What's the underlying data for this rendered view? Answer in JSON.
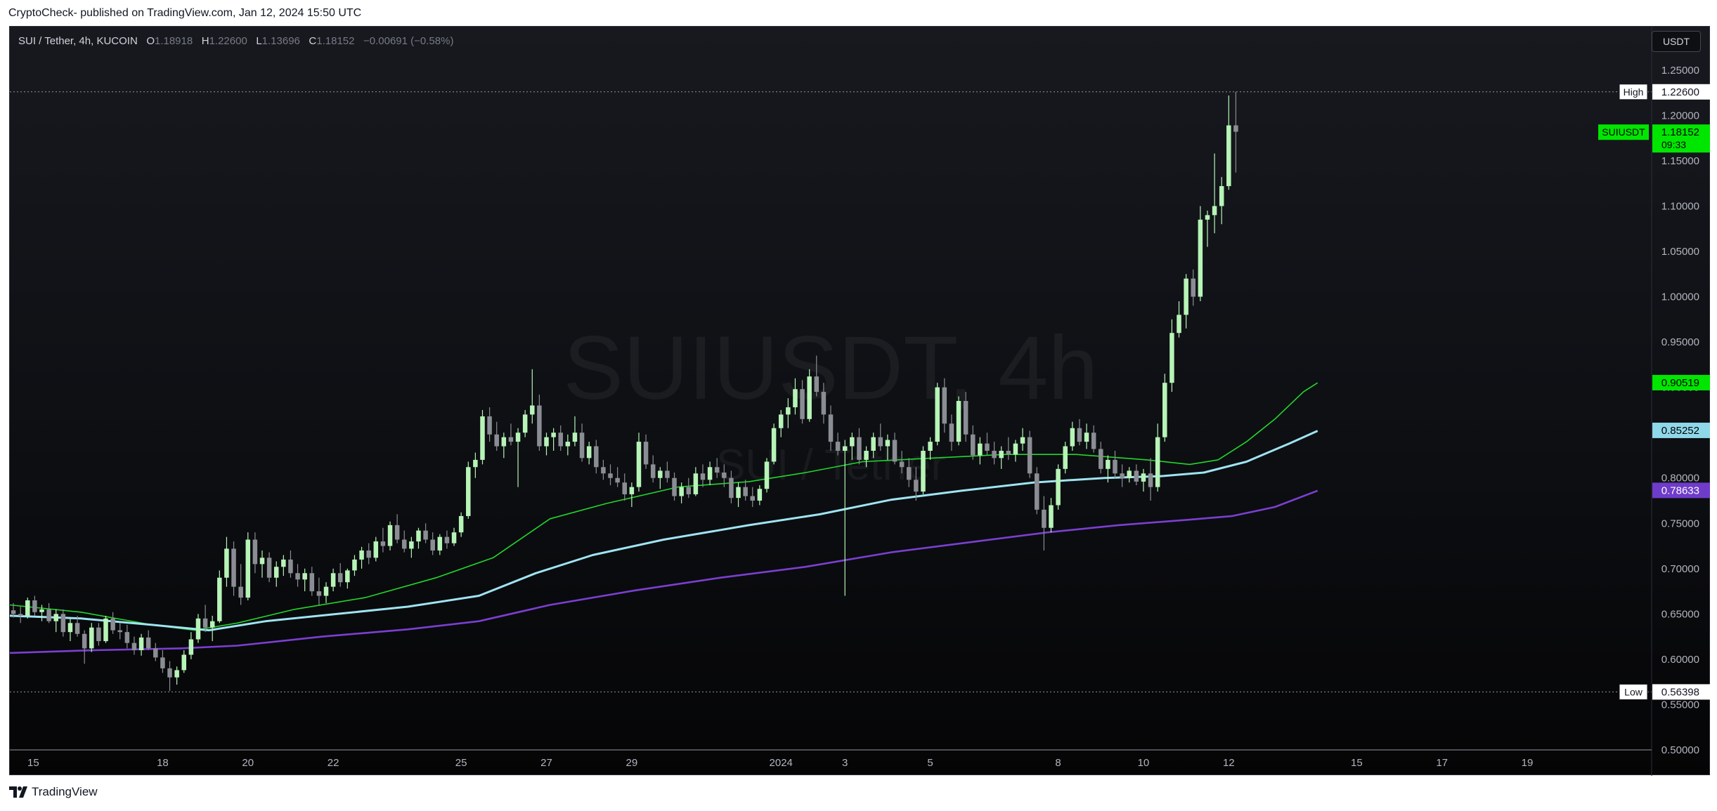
{
  "caption": "CryptoCheck- published on TradingView.com, Jan 12, 2024 15:50 UTC",
  "symbol": {
    "title": "SUI / Tether, 4h, KUCOIN",
    "o_label": "O",
    "o": "1.18918",
    "h_label": "H",
    "h": "1.22600",
    "l_label": "L",
    "l": "1.13696",
    "c_label": "C",
    "c": "1.18152",
    "change": "−0.00691 (−0.58%)"
  },
  "currency_button": "USDT",
  "watermark": {
    "main": "SUIUSDT, 4h",
    "sub": "SUI / Tether"
  },
  "footer_brand": "TradingView",
  "colors": {
    "up": "#b7f4b7",
    "down": "#8a8d93",
    "ema_short": "#22d62b",
    "ema_mid": "#9fe4f2",
    "ema_long": "#7b3fd1",
    "price_label_bg": "#00e600",
    "ema_mid_label_bg": "#8fd8ea",
    "ema_long_label_bg": "#6f3cc9"
  },
  "chart_data": {
    "type": "candlestick",
    "ylim": [
      0.5,
      1.27
    ],
    "y_ticks": [
      "1.25000",
      "1.20000",
      "1.15000",
      "1.10000",
      "1.05000",
      "1.00000",
      "0.95000",
      "0.90000",
      "0.85000",
      "0.80000",
      "0.75000",
      "0.70000",
      "0.65000",
      "0.60000",
      "0.55000",
      "0.50000"
    ],
    "x_ticks": [
      {
        "t": 3.3,
        "label": "15"
      },
      {
        "t": 21.5,
        "label": "18"
      },
      {
        "t": 33.5,
        "label": "20"
      },
      {
        "t": 45.5,
        "label": "22"
      },
      {
        "t": 63.5,
        "label": "25"
      },
      {
        "t": 75.5,
        "label": "27"
      },
      {
        "t": 87.5,
        "label": "29"
      },
      {
        "t": 108.5,
        "label": "2024"
      },
      {
        "t": 117.5,
        "label": "3"
      },
      {
        "t": 129.5,
        "label": "5"
      },
      {
        "t": 147.5,
        "label": "8"
      },
      {
        "t": 159.5,
        "label": "10"
      },
      {
        "t": 171.5,
        "label": "12"
      },
      {
        "t": 189.5,
        "label": "15"
      },
      {
        "t": 201.5,
        "label": "17"
      },
      {
        "t": 213.5,
        "label": "19"
      }
    ],
    "x_range": [
      0,
      231
    ],
    "candles": [
      [
        0.654,
        0.662,
        0.646,
        0.65
      ],
      [
        0.65,
        0.658,
        0.64,
        0.648
      ],
      [
        0.648,
        0.668,
        0.645,
        0.665
      ],
      [
        0.665,
        0.67,
        0.648,
        0.652
      ],
      [
        0.652,
        0.66,
        0.642,
        0.655
      ],
      [
        0.655,
        0.662,
        0.64,
        0.642
      ],
      [
        0.642,
        0.655,
        0.63,
        0.65
      ],
      [
        0.65,
        0.655,
        0.625,
        0.63
      ],
      [
        0.63,
        0.645,
        0.62,
        0.64
      ],
      [
        0.64,
        0.648,
        0.625,
        0.628
      ],
      [
        0.628,
        0.632,
        0.595,
        0.612
      ],
      [
        0.612,
        0.64,
        0.608,
        0.635
      ],
      [
        0.635,
        0.64,
        0.615,
        0.62
      ],
      [
        0.62,
        0.648,
        0.618,
        0.645
      ],
      [
        0.645,
        0.652,
        0.628,
        0.632
      ],
      [
        0.632,
        0.64,
        0.622,
        0.63
      ],
      [
        0.63,
        0.638,
        0.612,
        0.618
      ],
      [
        0.618,
        0.625,
        0.605,
        0.61
      ],
      [
        0.61,
        0.628,
        0.604,
        0.624
      ],
      [
        0.624,
        0.632,
        0.61,
        0.612
      ],
      [
        0.612,
        0.618,
        0.598,
        0.602
      ],
      [
        0.602,
        0.61,
        0.585,
        0.59
      ],
      [
        0.59,
        0.598,
        0.565,
        0.58
      ],
      [
        0.58,
        0.592,
        0.572,
        0.588
      ],
      [
        0.588,
        0.61,
        0.585,
        0.605
      ],
      [
        0.605,
        0.63,
        0.6,
        0.622
      ],
      [
        0.622,
        0.65,
        0.618,
        0.645
      ],
      [
        0.645,
        0.66,
        0.63,
        0.635
      ],
      [
        0.635,
        0.648,
        0.62,
        0.642
      ],
      [
        0.642,
        0.698,
        0.64,
        0.69
      ],
      [
        0.69,
        0.735,
        0.68,
        0.722
      ],
      [
        0.722,
        0.73,
        0.67,
        0.68
      ],
      [
        0.68,
        0.705,
        0.66,
        0.668
      ],
      [
        0.668,
        0.74,
        0.665,
        0.732
      ],
      [
        0.732,
        0.74,
        0.695,
        0.705
      ],
      [
        0.705,
        0.72,
        0.69,
        0.712
      ],
      [
        0.712,
        0.718,
        0.685,
        0.69
      ],
      [
        0.69,
        0.708,
        0.68,
        0.702
      ],
      [
        0.702,
        0.715,
        0.692,
        0.71
      ],
      [
        0.71,
        0.72,
        0.69,
        0.695
      ],
      [
        0.695,
        0.705,
        0.68,
        0.688
      ],
      [
        0.688,
        0.7,
        0.675,
        0.695
      ],
      [
        0.695,
        0.702,
        0.67,
        0.675
      ],
      [
        0.675,
        0.69,
        0.66,
        0.67
      ],
      [
        0.67,
        0.685,
        0.662,
        0.68
      ],
      [
        0.68,
        0.7,
        0.675,
        0.695
      ],
      [
        0.695,
        0.706,
        0.68,
        0.685
      ],
      [
        0.685,
        0.7,
        0.678,
        0.698
      ],
      [
        0.698,
        0.715,
        0.692,
        0.71
      ],
      [
        0.71,
        0.724,
        0.7,
        0.72
      ],
      [
        0.72,
        0.728,
        0.705,
        0.712
      ],
      [
        0.712,
        0.735,
        0.708,
        0.73
      ],
      [
        0.73,
        0.745,
        0.718,
        0.725
      ],
      [
        0.725,
        0.752,
        0.72,
        0.748
      ],
      [
        0.748,
        0.76,
        0.728,
        0.732
      ],
      [
        0.732,
        0.742,
        0.718,
        0.722
      ],
      [
        0.722,
        0.735,
        0.712,
        0.73
      ],
      [
        0.73,
        0.745,
        0.722,
        0.742
      ],
      [
        0.742,
        0.75,
        0.728,
        0.732
      ],
      [
        0.732,
        0.74,
        0.715,
        0.72
      ],
      [
        0.72,
        0.738,
        0.715,
        0.735
      ],
      [
        0.735,
        0.742,
        0.722,
        0.728
      ],
      [
        0.728,
        0.745,
        0.725,
        0.74
      ],
      [
        0.74,
        0.762,
        0.735,
        0.758
      ],
      [
        0.758,
        0.818,
        0.755,
        0.812
      ],
      [
        0.812,
        0.828,
        0.8,
        0.82
      ],
      [
        0.82,
        0.875,
        0.815,
        0.868
      ],
      [
        0.868,
        0.878,
        0.84,
        0.848
      ],
      [
        0.848,
        0.862,
        0.83,
        0.835
      ],
      [
        0.835,
        0.85,
        0.822,
        0.845
      ],
      [
        0.845,
        0.86,
        0.836,
        0.84
      ],
      [
        0.84,
        0.855,
        0.79,
        0.85
      ],
      [
        0.85,
        0.875,
        0.845,
        0.87
      ],
      [
        0.87,
        0.92,
        0.86,
        0.88
      ],
      [
        0.88,
        0.892,
        0.83,
        0.835
      ],
      [
        0.835,
        0.85,
        0.825,
        0.845
      ],
      [
        0.845,
        0.855,
        0.83,
        0.85
      ],
      [
        0.85,
        0.858,
        0.83,
        0.835
      ],
      [
        0.835,
        0.848,
        0.825,
        0.84
      ],
      [
        0.84,
        0.868,
        0.835,
        0.85
      ],
      [
        0.85,
        0.86,
        0.818,
        0.822
      ],
      [
        0.822,
        0.84,
        0.815,
        0.835
      ],
      [
        0.835,
        0.842,
        0.805,
        0.812
      ],
      [
        0.812,
        0.82,
        0.798,
        0.805
      ],
      [
        0.805,
        0.815,
        0.792,
        0.8
      ],
      [
        0.8,
        0.812,
        0.79,
        0.795
      ],
      [
        0.795,
        0.805,
        0.775,
        0.782
      ],
      [
        0.782,
        0.795,
        0.768,
        0.79
      ],
      [
        0.79,
        0.85,
        0.785,
        0.84
      ],
      [
        0.84,
        0.848,
        0.81,
        0.815
      ],
      [
        0.815,
        0.825,
        0.795,
        0.8
      ],
      [
        0.8,
        0.812,
        0.788,
        0.808
      ],
      [
        0.808,
        0.818,
        0.795,
        0.8
      ],
      [
        0.8,
        0.806,
        0.775,
        0.78
      ],
      [
        0.78,
        0.795,
        0.772,
        0.79
      ],
      [
        0.79,
        0.8,
        0.778,
        0.782
      ],
      [
        0.782,
        0.812,
        0.78,
        0.805
      ],
      [
        0.805,
        0.815,
        0.79,
        0.798
      ],
      [
        0.798,
        0.818,
        0.792,
        0.812
      ],
      [
        0.812,
        0.822,
        0.8,
        0.806
      ],
      [
        0.806,
        0.815,
        0.79,
        0.8
      ],
      [
        0.8,
        0.808,
        0.772,
        0.778
      ],
      [
        0.778,
        0.795,
        0.768,
        0.79
      ],
      [
        0.79,
        0.798,
        0.775,
        0.78
      ],
      [
        0.78,
        0.79,
        0.768,
        0.775
      ],
      [
        0.775,
        0.792,
        0.77,
        0.788
      ],
      [
        0.788,
        0.822,
        0.784,
        0.818
      ],
      [
        0.818,
        0.86,
        0.815,
        0.855
      ],
      [
        0.855,
        0.875,
        0.845,
        0.87
      ],
      [
        0.87,
        0.888,
        0.855,
        0.878
      ],
      [
        0.878,
        0.91,
        0.87,
        0.898
      ],
      [
        0.898,
        0.908,
        0.86,
        0.865
      ],
      [
        0.865,
        0.92,
        0.862,
        0.912
      ],
      [
        0.912,
        0.935,
        0.89,
        0.895
      ],
      [
        0.895,
        0.905,
        0.86,
        0.87
      ],
      [
        0.87,
        0.88,
        0.83,
        0.84
      ],
      [
        0.84,
        0.85,
        0.825,
        0.83
      ],
      [
        0.83,
        0.842,
        0.67,
        0.835
      ],
      [
        0.835,
        0.85,
        0.82,
        0.845
      ],
      [
        0.845,
        0.855,
        0.815,
        0.82
      ],
      [
        0.82,
        0.835,
        0.812,
        0.83
      ],
      [
        0.83,
        0.85,
        0.822,
        0.845
      ],
      [
        0.845,
        0.86,
        0.83,
        0.835
      ],
      [
        0.835,
        0.848,
        0.82,
        0.842
      ],
      [
        0.842,
        0.85,
        0.815,
        0.818
      ],
      [
        0.818,
        0.83,
        0.805,
        0.812
      ],
      [
        0.812,
        0.822,
        0.79,
        0.798
      ],
      [
        0.798,
        0.812,
        0.775,
        0.785
      ],
      [
        0.785,
        0.835,
        0.782,
        0.83
      ],
      [
        0.83,
        0.845,
        0.82,
        0.84
      ],
      [
        0.84,
        0.905,
        0.836,
        0.9
      ],
      [
        0.9,
        0.91,
        0.85,
        0.86
      ],
      [
        0.86,
        0.87,
        0.83,
        0.84
      ],
      [
        0.84,
        0.89,
        0.836,
        0.885
      ],
      [
        0.885,
        0.895,
        0.84,
        0.848
      ],
      [
        0.848,
        0.858,
        0.82,
        0.825
      ],
      [
        0.825,
        0.845,
        0.815,
        0.838
      ],
      [
        0.838,
        0.85,
        0.825,
        0.83
      ],
      [
        0.83,
        0.84,
        0.815,
        0.822
      ],
      [
        0.822,
        0.835,
        0.81,
        0.83
      ],
      [
        0.83,
        0.845,
        0.82,
        0.826
      ],
      [
        0.826,
        0.842,
        0.818,
        0.838
      ],
      [
        0.838,
        0.855,
        0.83,
        0.845
      ],
      [
        0.845,
        0.852,
        0.8,
        0.805
      ],
      [
        0.805,
        0.812,
        0.76,
        0.765
      ],
      [
        0.765,
        0.78,
        0.72,
        0.745
      ],
      [
        0.745,
        0.778,
        0.74,
        0.77
      ],
      [
        0.77,
        0.815,
        0.765,
        0.81
      ],
      [
        0.81,
        0.84,
        0.805,
        0.835
      ],
      [
        0.835,
        0.862,
        0.83,
        0.855
      ],
      [
        0.855,
        0.865,
        0.836,
        0.84
      ],
      [
        0.84,
        0.86,
        0.832,
        0.85
      ],
      [
        0.85,
        0.858,
        0.828,
        0.832
      ],
      [
        0.832,
        0.84,
        0.805,
        0.81
      ],
      [
        0.81,
        0.825,
        0.795,
        0.82
      ],
      [
        0.82,
        0.83,
        0.8,
        0.805
      ],
      [
        0.805,
        0.815,
        0.79,
        0.8
      ],
      [
        0.8,
        0.812,
        0.795,
        0.808
      ],
      [
        0.808,
        0.815,
        0.792,
        0.796
      ],
      [
        0.796,
        0.81,
        0.785,
        0.805
      ],
      [
        0.805,
        0.822,
        0.775,
        0.79
      ],
      [
        0.79,
        0.86,
        0.785,
        0.845
      ],
      [
        0.845,
        0.915,
        0.84,
        0.905
      ],
      [
        0.905,
        0.975,
        0.895,
        0.96
      ],
      [
        0.96,
        0.995,
        0.955,
        0.98
      ],
      [
        0.98,
        1.025,
        0.965,
        1.02
      ],
      [
        1.02,
        1.03,
        0.99,
        1.0
      ],
      [
        1.0,
        1.1,
        0.995,
        1.085
      ],
      [
        1.085,
        1.095,
        1.055,
        1.09
      ],
      [
        1.09,
        1.158,
        1.07,
        1.1
      ],
      [
        1.1,
        1.132,
        1.08,
        1.122
      ],
      [
        1.122,
        1.222,
        1.118,
        1.189
      ],
      [
        1.189,
        1.226,
        1.137,
        1.182
      ]
    ],
    "series": [
      {
        "name_label": "0.90519",
        "values": [
          [
            0,
            0.66
          ],
          [
            10,
            0.652
          ],
          [
            20,
            0.638
          ],
          [
            26,
            0.632
          ],
          [
            32,
            0.64
          ],
          [
            40,
            0.655
          ],
          [
            50,
            0.668
          ],
          [
            60,
            0.69
          ],
          [
            68,
            0.712
          ],
          [
            76,
            0.755
          ],
          [
            84,
            0.772
          ],
          [
            94,
            0.79
          ],
          [
            104,
            0.796
          ],
          [
            112,
            0.806
          ],
          [
            120,
            0.818
          ],
          [
            130,
            0.822
          ],
          [
            140,
            0.826
          ],
          [
            150,
            0.826
          ],
          [
            160,
            0.82
          ],
          [
            166,
            0.815
          ],
          [
            170,
            0.82
          ],
          [
            174,
            0.84
          ],
          [
            178,
            0.865
          ],
          [
            182,
            0.895
          ],
          [
            184,
            0.905
          ]
        ]
      },
      {
        "name_label": "0.85252",
        "values": [
          [
            0,
            0.648
          ],
          [
            10,
            0.645
          ],
          [
            20,
            0.638
          ],
          [
            28,
            0.632
          ],
          [
            36,
            0.642
          ],
          [
            46,
            0.65
          ],
          [
            56,
            0.658
          ],
          [
            66,
            0.67
          ],
          [
            74,
            0.695
          ],
          [
            82,
            0.715
          ],
          [
            92,
            0.732
          ],
          [
            104,
            0.748
          ],
          [
            114,
            0.76
          ],
          [
            124,
            0.776
          ],
          [
            134,
            0.786
          ],
          [
            144,
            0.795
          ],
          [
            154,
            0.8
          ],
          [
            162,
            0.802
          ],
          [
            168,
            0.806
          ],
          [
            174,
            0.818
          ],
          [
            180,
            0.838
          ],
          [
            184,
            0.852
          ]
        ]
      },
      {
        "name_label": "0.78633",
        "values": [
          [
            0,
            0.607
          ],
          [
            12,
            0.61
          ],
          [
            24,
            0.612
          ],
          [
            32,
            0.615
          ],
          [
            44,
            0.625
          ],
          [
            56,
            0.633
          ],
          [
            66,
            0.642
          ],
          [
            76,
            0.66
          ],
          [
            88,
            0.676
          ],
          [
            100,
            0.69
          ],
          [
            112,
            0.702
          ],
          [
            124,
            0.718
          ],
          [
            136,
            0.73
          ],
          [
            146,
            0.74
          ],
          [
            156,
            0.748
          ],
          [
            166,
            0.754
          ],
          [
            172,
            0.758
          ],
          [
            178,
            0.768
          ],
          [
            184,
            0.786
          ]
        ]
      }
    ],
    "high": {
      "label": "High",
      "value": "1.22600",
      "y": 1.226
    },
    "low": {
      "label": "Low",
      "value": "0.56398",
      "y": 0.56398
    },
    "price_label": {
      "name": "SUIUSDT",
      "value": "1.18152",
      "countdown": "09:33",
      "y": 1.18152
    },
    "ema_labels": [
      {
        "value": "0.90519",
        "y": 0.90519,
        "color_key": "price_label_bg",
        "text_color": "#000000"
      },
      {
        "value": "0.85252",
        "y": 0.85252,
        "color_key": "ema_mid_label_bg",
        "text_color": "#000000"
      },
      {
        "value": "0.78633",
        "y": 0.78633,
        "color_key": "ema_long_label_bg",
        "text_color": "#ffffff"
      }
    ]
  }
}
